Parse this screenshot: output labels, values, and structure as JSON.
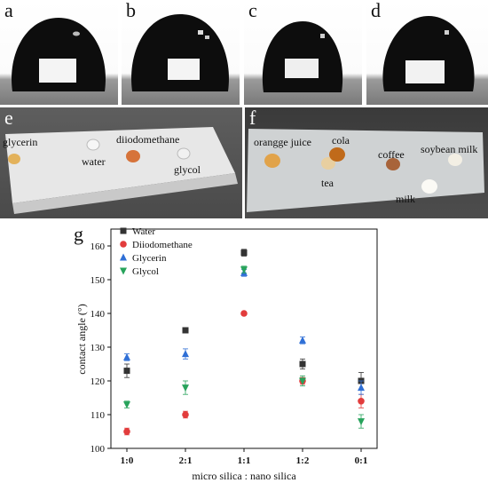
{
  "panels": {
    "a": {
      "letter": "a"
    },
    "b": {
      "letter": "b"
    },
    "c": {
      "letter": "c"
    },
    "d": {
      "letter": "d"
    },
    "e": {
      "letter": "e",
      "labels": [
        "glycerin",
        "water",
        "diiodomethane",
        "glycol"
      ]
    },
    "f": {
      "letter": "f",
      "labels": [
        "orangge juice",
        "cola",
        "coffee",
        "soybean milk",
        "tea",
        "milk"
      ]
    },
    "g": {
      "letter": "g"
    }
  },
  "colors": {
    "water": "#333333",
    "diiodomethane": "#e23c3c",
    "glycerin": "#2f6fd6",
    "glycol": "#27a35b"
  },
  "chart_data": {
    "type": "scatter",
    "xlabel": "micro silica : nano silica",
    "ylabel": "contact angle (°)",
    "categories": [
      "1:0",
      "2:1",
      "1:1",
      "1:2",
      "0:1"
    ],
    "ylim": [
      100,
      165
    ],
    "yticks": [
      100,
      110,
      120,
      130,
      140,
      150,
      160
    ],
    "legend_position": "top-left",
    "series": [
      {
        "name": "Water",
        "marker": "square",
        "values": [
          123,
          135,
          158,
          125,
          120
        ],
        "errors": [
          2,
          0.8,
          1,
          1.5,
          2.5
        ]
      },
      {
        "name": "Diiodomethane",
        "marker": "circle",
        "values": [
          105,
          110,
          140,
          120,
          114
        ],
        "errors": [
          1,
          1,
          0.5,
          1,
          2
        ]
      },
      {
        "name": "Glycerin",
        "marker": "triangle-up",
        "values": [
          127,
          128,
          152,
          132,
          118
        ],
        "errors": [
          1,
          1.5,
          1,
          1,
          2
        ]
      },
      {
        "name": "Glycol",
        "marker": "triangle-down",
        "values": [
          113,
          118,
          153,
          120,
          108
        ],
        "errors": [
          1,
          2,
          1,
          1.5,
          2
        ]
      }
    ]
  }
}
